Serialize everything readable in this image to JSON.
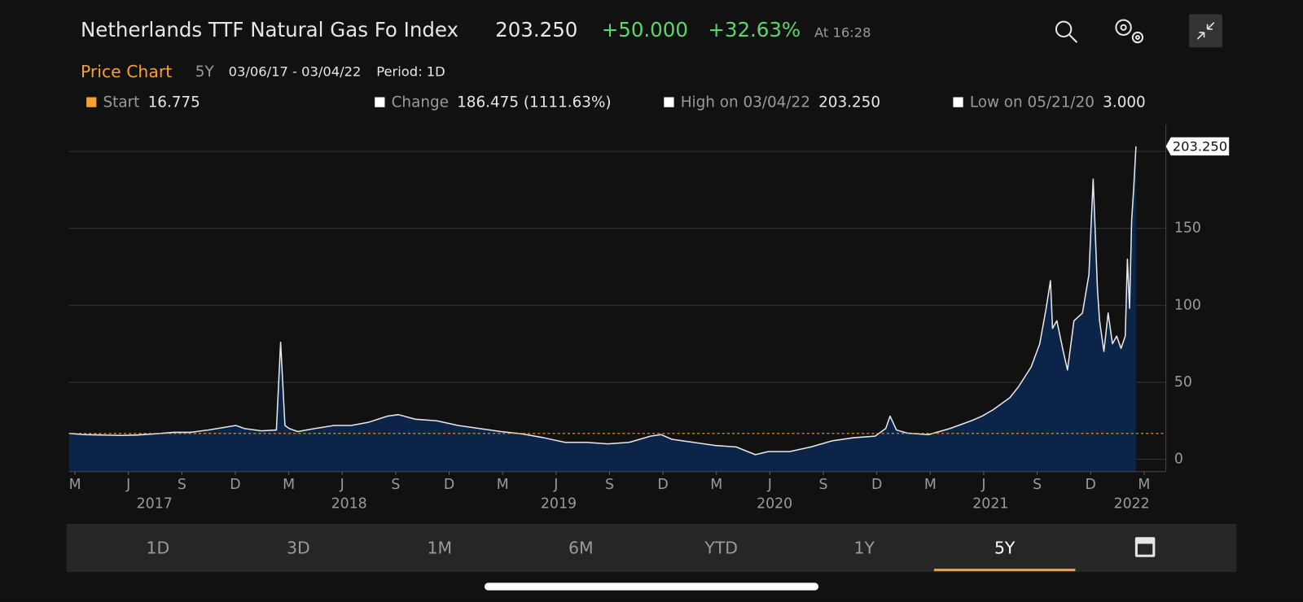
{
  "header": {
    "title": "Netherlands TTF Natural Gas Fo Index",
    "price": "203.250",
    "change": "+50.000",
    "change_pct": "+32.63%",
    "time": "At 16:28"
  },
  "subheader": {
    "label": "Price Chart",
    "range": "5Y",
    "dates": "03/06/17 - 03/04/22",
    "period": "Period: 1D"
  },
  "stats": [
    {
      "label": "Start",
      "value": "16.775"
    },
    {
      "label": "Change",
      "value": "186.475 (1111.63%)"
    },
    {
      "label": "High on 03/04/22",
      "value": "203.250"
    },
    {
      "label": "Low on 05/21/20",
      "value": "3.000"
    }
  ],
  "tabs": [
    "1D",
    "3D",
    "1M",
    "6M",
    "YTD",
    "1Y",
    "5Y"
  ],
  "active_tab": 6,
  "chart_data": {
    "type": "area",
    "x": [
      2017.18,
      2017.25,
      2017.33,
      2017.42,
      2017.5,
      2017.58,
      2017.67,
      2017.75,
      2017.83,
      2017.92,
      2017.96,
      2018.0,
      2018.08,
      2018.15,
      2018.17,
      2018.19,
      2018.21,
      2018.25,
      2018.33,
      2018.42,
      2018.5,
      2018.58,
      2018.67,
      2018.72,
      2018.8,
      2018.9,
      2019.0,
      2019.1,
      2019.2,
      2019.3,
      2019.4,
      2019.5,
      2019.6,
      2019.7,
      2019.8,
      2019.9,
      2019.95,
      2020.0,
      2020.1,
      2020.2,
      2020.3,
      2020.39,
      2020.45,
      2020.55,
      2020.65,
      2020.75,
      2020.85,
      2020.95,
      2021.0,
      2021.02,
      2021.05,
      2021.1,
      2021.2,
      2021.3,
      2021.4,
      2021.45,
      2021.5,
      2021.58,
      2021.62,
      2021.68,
      2021.72,
      2021.75,
      2021.77,
      2021.78,
      2021.8,
      2021.83,
      2021.85,
      2021.88,
      2021.92,
      2021.95,
      2021.97,
      2021.99,
      2022.0,
      2022.02,
      2022.04,
      2022.06,
      2022.08,
      2022.1,
      2022.12,
      2022.13,
      2022.14,
      2022.15,
      2022.16,
      2022.17
    ],
    "series": [
      {
        "name": "Netherlands TTF Natural Gas Fo Index",
        "color": "#e8e8e8",
        "fill": "#0b2447",
        "values": [
          16.8,
          16,
          15.8,
          15.5,
          15.8,
          16.5,
          17.5,
          17.5,
          19,
          21,
          22,
          20,
          18.5,
          19,
          76,
          22,
          20,
          18,
          20,
          22,
          22,
          24,
          28,
          29,
          26,
          25,
          22,
          20,
          18,
          16.5,
          14,
          11,
          11,
          10,
          11,
          15,
          16,
          13,
          11,
          9,
          8,
          3,
          5,
          5,
          8,
          12,
          14,
          15,
          20,
          28,
          19,
          17,
          16,
          20,
          25,
          28,
          32,
          40,
          47,
          60,
          75,
          98,
          116,
          85,
          90,
          70,
          58,
          90,
          95,
          120,
          182,
          110,
          90,
          70,
          95,
          75,
          80,
          72,
          80,
          130,
          98,
          155,
          177,
          203.25
        ]
      }
    ],
    "reference_line": 16.775,
    "reference_color": "#f5a033",
    "last_label": "203.250",
    "xlim": [
      2017.18,
      2022.31
    ],
    "ylim": [
      -8,
      212
    ],
    "yticks": [
      0,
      50,
      100,
      150
    ],
    "ygrid": [
      0,
      50,
      100,
      150,
      200
    ],
    "xticks": [
      {
        "value": 2017.208,
        "label": "M"
      },
      {
        "value": 2017.458,
        "label": "J"
      },
      {
        "value": 2017.708,
        "label": "S"
      },
      {
        "value": 2017.958,
        "label": "D"
      },
      {
        "value": 2018.208,
        "label": "M"
      },
      {
        "value": 2018.458,
        "label": "J"
      },
      {
        "value": 2018.708,
        "label": "S"
      },
      {
        "value": 2018.958,
        "label": "D"
      },
      {
        "value": 2019.208,
        "label": "M"
      },
      {
        "value": 2019.458,
        "label": "J"
      },
      {
        "value": 2019.708,
        "label": "S"
      },
      {
        "value": 2019.958,
        "label": "D"
      },
      {
        "value": 2020.208,
        "label": "M"
      },
      {
        "value": 2020.458,
        "label": "J"
      },
      {
        "value": 2020.708,
        "label": "S"
      },
      {
        "value": 2020.958,
        "label": "D"
      },
      {
        "value": 2021.208,
        "label": "M"
      },
      {
        "value": 2021.458,
        "label": "J"
      },
      {
        "value": 2021.708,
        "label": "S"
      },
      {
        "value": 2021.958,
        "label": "D"
      },
      {
        "value": 2022.208,
        "label": "M"
      }
    ],
    "year_ticks": [
      {
        "value": 2017.58,
        "label": "2017"
      },
      {
        "value": 2018.49,
        "label": "2018"
      },
      {
        "value": 2019.47,
        "label": "2019"
      },
      {
        "value": 2020.48,
        "label": "2020"
      },
      {
        "value": 2021.49,
        "label": "2021"
      },
      {
        "value": 2022.15,
        "label": "2022"
      }
    ],
    "grid": true
  }
}
